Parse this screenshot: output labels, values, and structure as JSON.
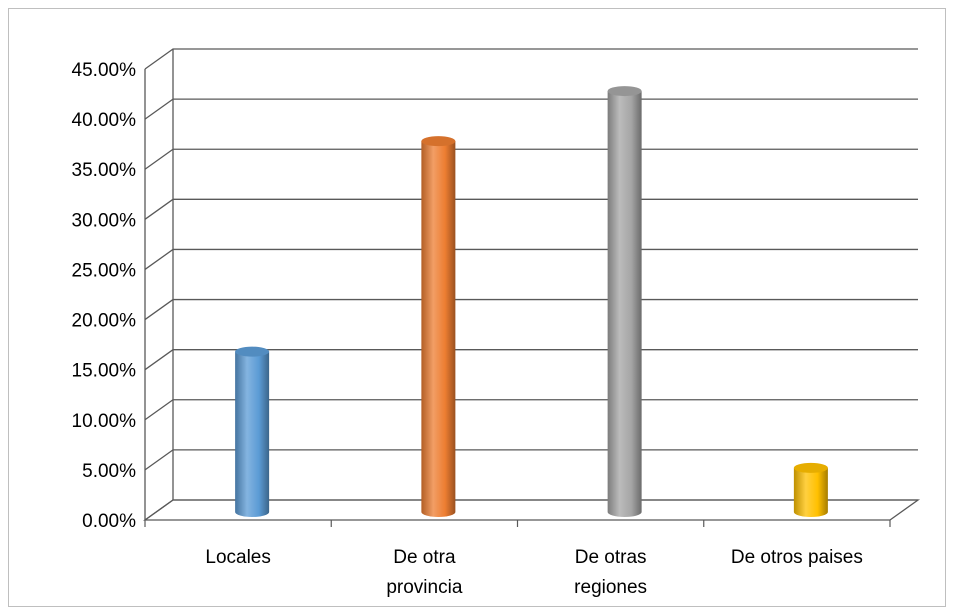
{
  "chart_data": {
    "type": "bar",
    "categories": [
      [
        "Locales"
      ],
      [
        "De otra",
        "provincia"
      ],
      [
        "De otras",
        "regiones"
      ],
      [
        "De otros paises"
      ]
    ],
    "values": [
      16.0,
      37.0,
      42.0,
      4.4
    ],
    "colors": [
      "#5b9bd5",
      "#ed7d31",
      "#a5a5a5",
      "#ffc000"
    ],
    "ylim": [
      0,
      45
    ],
    "yticks": [
      "0.00%",
      "5.00%",
      "10.00%",
      "15.00%",
      "20.00%",
      "25.00%",
      "30.00%",
      "35.00%",
      "40.00%",
      "45.00%"
    ],
    "grid": true,
    "title": "",
    "xlabel": "",
    "ylabel": "",
    "style": "3d-cylinder"
  }
}
